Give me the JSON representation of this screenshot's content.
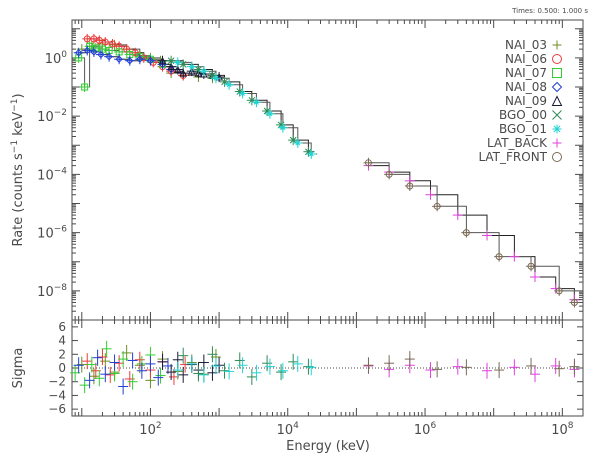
{
  "header": {
    "time_note": "Times: 0.500: 1.000 s"
  },
  "chart_data": {
    "type": "scatter",
    "upper": {
      "ylabel_main": "Rate (counts s",
      "ylabel_sup1": "−1",
      "ylabel_mid": " keV",
      "ylabel_sup2": "−1",
      "ylabel_end": ")",
      "xscale": "log",
      "yscale": "log",
      "xlim": [
        7.2,
        200000000
      ],
      "ylim": [
        1e-09,
        20
      ],
      "yticks": [
        {
          "v": 1,
          "m": "10",
          "e": "0"
        },
        {
          "v": 0.01,
          "m": "10",
          "e": "−2"
        },
        {
          "v": 0.0001,
          "m": "10",
          "e": "−4"
        },
        {
          "v": 1e-06,
          "m": "10",
          "e": "−6"
        },
        {
          "v": 1e-08,
          "m": "10",
          "e": "−8"
        }
      ]
    },
    "lower": {
      "ylabel": "Sigma",
      "ylim": [
        -7,
        7
      ],
      "yticks": [
        "6",
        "4",
        "2",
        "0",
        "−2",
        "−4",
        "−6"
      ]
    },
    "xlabel": "Energy (keV)",
    "xticks": [
      {
        "v": 100,
        "m": "10",
        "e": "2"
      },
      {
        "v": 10000,
        "m": "10",
        "e": "4"
      },
      {
        "v": 1000000,
        "m": "10",
        "e": "6"
      },
      {
        "v": 100000000,
        "m": "10",
        "e": "8"
      }
    ],
    "legend_position": "top-right",
    "series": [
      {
        "name": "NAI_03",
        "color": "#6b8e23",
        "marker": "plus",
        "points": [
          [
            10,
            2.0
          ],
          [
            14,
            2.5
          ],
          [
            20,
            3.0
          ],
          [
            30,
            2.8
          ],
          [
            45,
            2.0
          ],
          [
            70,
            1.2
          ],
          [
            100,
            1.0
          ],
          [
            140,
            0.8
          ],
          [
            200,
            0.3
          ],
          [
            300,
            0.25
          ],
          [
            500,
            0.22
          ],
          [
            800,
            0.2
          ]
        ],
        "resid": [
          [
            10,
            0.5
          ],
          [
            15,
            -1.2
          ],
          [
            22,
            1.0
          ],
          [
            30,
            -0.6
          ],
          [
            45,
            2.2
          ],
          [
            70,
            0.4
          ],
          [
            100,
            -1.8
          ],
          [
            150,
            1.3
          ],
          [
            250,
            -0.5
          ],
          [
            400,
            0.8
          ],
          [
            600,
            -0.9
          ],
          [
            900,
            1.6
          ]
        ]
      },
      {
        "name": "NAI_06",
        "color": "#ee3b3b",
        "marker": "circle",
        "points": [
          [
            12,
            4.5
          ],
          [
            15,
            4.5
          ],
          [
            18,
            4.0
          ],
          [
            22,
            3.5
          ],
          [
            28,
            3.0
          ],
          [
            35,
            2.5
          ],
          [
            45,
            2.0
          ],
          [
            60,
            1.5
          ],
          [
            80,
            1.0
          ],
          [
            110,
            0.7
          ],
          [
            150,
            0.5
          ],
          [
            200,
            0.35
          ],
          [
            300,
            0.25
          ]
        ],
        "resid": [
          [
            12,
            1.0
          ],
          [
            16,
            -0.4
          ],
          [
            20,
            1.6
          ],
          [
            26,
            -1.0
          ],
          [
            35,
            0.7
          ],
          [
            50,
            -1.6
          ],
          [
            70,
            1.2
          ],
          [
            100,
            -0.3
          ],
          [
            150,
            0.9
          ],
          [
            220,
            -1.3
          ],
          [
            320,
            0.5
          ]
        ]
      },
      {
        "name": "NAI_07",
        "color": "#32cd32",
        "marker": "square",
        "points": [
          [
            9,
            1.0
          ],
          [
            11,
            0.1
          ],
          [
            13,
            2.5
          ],
          [
            16,
            2.2
          ],
          [
            20,
            2.0
          ],
          [
            25,
            1.8
          ],
          [
            35,
            1.6
          ],
          [
            50,
            1.3
          ],
          [
            70,
            1.1
          ],
          [
            100,
            0.9
          ],
          [
            150,
            0.6
          ]
        ],
        "resid": [
          [
            8,
            -0.7
          ],
          [
            11,
            -2.5
          ],
          [
            14,
            0.5
          ],
          [
            18,
            -1.5
          ],
          [
            23,
            2.8
          ],
          [
            30,
            -0.8
          ],
          [
            40,
            1.3
          ],
          [
            55,
            -2.0
          ],
          [
            75,
            0.6
          ],
          [
            100,
            1.9
          ],
          [
            140,
            -1.1
          ]
        ]
      },
      {
        "name": "NAI_08",
        "color": "#1f3fd6",
        "marker": "diamond",
        "points": [
          [
            9,
            1.5
          ],
          [
            12,
            1.8
          ],
          [
            15,
            1.6
          ],
          [
            19,
            1.3
          ],
          [
            25,
            1.1
          ],
          [
            35,
            0.9
          ],
          [
            50,
            0.8
          ],
          [
            70,
            0.9
          ],
          [
            100,
            0.8
          ],
          [
            150,
            0.6
          ],
          [
            200,
            0.4
          ]
        ],
        "resid": [
          [
            9,
            0.4
          ],
          [
            13,
            -1.8
          ],
          [
            17,
            1.5
          ],
          [
            22,
            -0.9
          ],
          [
            30,
            0.8
          ],
          [
            40,
            -2.7
          ],
          [
            55,
            1.1
          ],
          [
            75,
            -0.4
          ],
          [
            100,
            0.6
          ],
          [
            130,
            -1.4
          ],
          [
            180,
            0.3
          ]
        ]
      },
      {
        "name": "NAI_09",
        "color": "#1a1a3a",
        "marker": "triangle",
        "points": [
          [
            150,
            0.8
          ],
          [
            200,
            0.5
          ],
          [
            250,
            0.4
          ],
          [
            300,
            0.3
          ],
          [
            400,
            0.35
          ],
          [
            500,
            0.3
          ],
          [
            600,
            0.28
          ],
          [
            800,
            0.25
          ],
          [
            1000,
            0.22
          ]
        ],
        "resid": [
          [
            150,
            0.9
          ],
          [
            200,
            -0.6
          ],
          [
            250,
            1.2
          ],
          [
            300,
            -1.0
          ],
          [
            400,
            0.5
          ],
          [
            500,
            -0.3
          ],
          [
            600,
            0.8
          ],
          [
            800,
            -0.7
          ],
          [
            1000,
            0.4
          ]
        ]
      },
      {
        "name": "BGO_00",
        "color": "#2e8b57",
        "marker": "cross",
        "points": [
          [
            200,
            0.8
          ],
          [
            300,
            0.6
          ],
          [
            500,
            0.4
          ],
          [
            800,
            0.25
          ],
          [
            1200,
            0.15
          ],
          [
            2000,
            0.07
          ],
          [
            3000,
            0.035
          ],
          [
            5000,
            0.015
          ],
          [
            8000,
            0.005
          ],
          [
            12000,
            0.0015
          ],
          [
            20000,
            0.0006
          ]
        ],
        "resid": [
          [
            300,
            1.8
          ],
          [
            500,
            -0.8
          ],
          [
            800,
            2.0
          ],
          [
            1200,
            -0.4
          ],
          [
            2000,
            1.1
          ],
          [
            3000,
            -1.3
          ],
          [
            5000,
            0.7
          ],
          [
            8000,
            -0.6
          ],
          [
            12000,
            0.9
          ],
          [
            20000,
            0.2
          ]
        ]
      },
      {
        "name": "BGO_01",
        "color": "#22d3d3",
        "marker": "asterisk",
        "points": [
          [
            250,
            0.7
          ],
          [
            400,
            0.5
          ],
          [
            600,
            0.35
          ],
          [
            900,
            0.2
          ],
          [
            1400,
            0.12
          ],
          [
            2200,
            0.06
          ],
          [
            3500,
            0.03
          ],
          [
            5500,
            0.012
          ],
          [
            8500,
            0.004
          ],
          [
            14000,
            0.0012
          ],
          [
            22000,
            0.0005
          ]
        ],
        "resid": [
          [
            250,
            -0.3
          ],
          [
            400,
            0.6
          ],
          [
            600,
            -1.0
          ],
          [
            900,
            0.3
          ],
          [
            1400,
            -0.5
          ],
          [
            2200,
            0.4
          ],
          [
            3500,
            -0.7
          ],
          [
            5500,
            0.2
          ],
          [
            8500,
            -0.4
          ],
          [
            14000,
            0.6
          ],
          [
            22000,
            0.1
          ]
        ]
      },
      {
        "name": "LAT_BACK",
        "color": "#e040e0",
        "marker": "plus",
        "points": [
          [
            150000,
            0.0002
          ],
          [
            300000,
            0.00012
          ],
          [
            600000,
            6e-05
          ],
          [
            1200000,
            2e-05
          ],
          [
            3000000,
            4e-06
          ],
          [
            8000000,
            8e-07
          ],
          [
            20000000,
            1.5e-07
          ],
          [
            40000000,
            3e-08
          ],
          [
            80000000,
            1.2e-08
          ],
          [
            150000000,
            5e-09
          ]
        ],
        "resid": [
          [
            150000,
            0.3
          ],
          [
            300000,
            -0.2
          ],
          [
            600000,
            0.4
          ],
          [
            1200000,
            -0.3
          ],
          [
            3000000,
            0.2
          ],
          [
            8000000,
            -0.4
          ],
          [
            20000000,
            0.1
          ],
          [
            40000000,
            -0.9
          ],
          [
            80000000,
            0.3
          ],
          [
            150000000,
            -0.2
          ]
        ]
      },
      {
        "name": "LAT_FRONT",
        "color": "#7a6a55",
        "marker": "circle",
        "points": [
          [
            150000,
            0.00025
          ],
          [
            300000,
            0.0001
          ],
          [
            600000,
            4e-05
          ],
          [
            1500000,
            8e-06
          ],
          [
            4000000,
            1e-06
          ],
          [
            12000000,
            1.5e-07
          ],
          [
            35000000,
            7e-08
          ],
          [
            90000000,
            1e-08
          ],
          [
            150000000,
            4e-09
          ]
        ],
        "resid": [
          [
            150000,
            0.4
          ],
          [
            300000,
            0.7
          ],
          [
            600000,
            1.3
          ],
          [
            1500000,
            -0.2
          ],
          [
            4000000,
            0.1
          ],
          [
            12000000,
            -0.3
          ],
          [
            35000000,
            0.3
          ],
          [
            90000000,
            -0.1
          ],
          [
            150000000,
            0.2
          ]
        ]
      }
    ]
  }
}
